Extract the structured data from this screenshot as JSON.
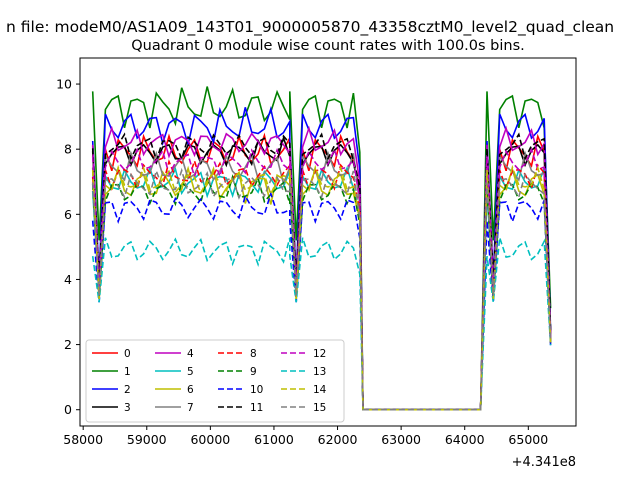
{
  "chart_data": {
    "type": "line",
    "suptitle": "n file: modeM0/AS1A09_143T01_9000005870_43358cztM0_level2_quad_clean",
    "title": "Quadrant 0 module wise count rates with 100.0s bins.",
    "xlabel": "",
    "ylabel": "",
    "x_offset_label": "+4.341e8",
    "xlim": [
      57950,
      65750
    ],
    "ylim": [
      -0.5,
      10.8
    ],
    "x_ticks": [
      58000,
      59000,
      60000,
      61000,
      62000,
      63000,
      64000,
      65000
    ],
    "x_tick_labels": [
      "58000",
      "59000",
      "60000",
      "61000",
      "62000",
      "63000",
      "64000",
      "65000"
    ],
    "y_ticks": [
      0,
      2,
      4,
      6,
      8,
      10
    ],
    "y_tick_labels": [
      "0",
      "2",
      "4",
      "6",
      "8",
      "10"
    ],
    "legend_position": "lower-left",
    "segments": [
      {
        "start": 58150,
        "count": 32
      },
      {
        "start": 61250,
        "count": 12
      },
      {
        "start": 62450,
        "count": 19
      },
      {
        "start": 64350,
        "count": 11
      }
    ],
    "series": [
      {
        "name": "0",
        "color": "#ff0000",
        "dash": false,
        "base": 7.9,
        "amp": 0.4,
        "dip": 3.6
      },
      {
        "name": "1",
        "color": "#008000",
        "dash": false,
        "base": 9.3,
        "amp": 0.45,
        "dip": 5.2
      },
      {
        "name": "2",
        "color": "#0000ff",
        "dash": false,
        "base": 8.7,
        "amp": 0.4,
        "dip": 4.0
      },
      {
        "name": "3",
        "color": "#000000",
        "dash": false,
        "base": 7.9,
        "amp": 0.3,
        "dip": 3.9
      },
      {
        "name": "4",
        "color": "#bf00bf",
        "dash": false,
        "base": 8.2,
        "amp": 0.3,
        "dip": 3.8
      },
      {
        "name": "5",
        "color": "#00bfbf",
        "dash": false,
        "base": 7.0,
        "amp": 0.3,
        "dip": 3.5
      },
      {
        "name": "6",
        "color": "#bfbf00",
        "dash": false,
        "base": 6.9,
        "amp": 0.4,
        "dip": 3.4
      },
      {
        "name": "7",
        "color": "#808080",
        "dash": false,
        "base": 7.4,
        "amp": 0.35,
        "dip": 3.6
      },
      {
        "name": "8",
        "color": "#ff0000",
        "dash": true,
        "base": 7.2,
        "amp": 0.3,
        "dip": 3.5
      },
      {
        "name": "9",
        "color": "#008000",
        "dash": true,
        "base": 6.7,
        "amp": 0.3,
        "dip": 3.4
      },
      {
        "name": "10",
        "color": "#0000ff",
        "dash": true,
        "base": 6.2,
        "amp": 0.3,
        "dip": 3.3
      },
      {
        "name": "11",
        "color": "#000000",
        "dash": true,
        "base": 8.1,
        "amp": 0.3,
        "dip": 4.0
      },
      {
        "name": "12",
        "color": "#bf00bf",
        "dash": true,
        "base": 7.6,
        "amp": 0.3,
        "dip": 3.7
      },
      {
        "name": "13",
        "color": "#00bfbf",
        "dash": true,
        "base": 4.9,
        "amp": 0.3,
        "dip": 3.3
      },
      {
        "name": "14",
        "color": "#bfbf00",
        "dash": true,
        "base": 7.0,
        "amp": 0.3,
        "dip": 3.4
      },
      {
        "name": "15",
        "color": "#808080",
        "dash": true,
        "base": 6.9,
        "amp": 0.3,
        "dip": 3.5
      }
    ]
  }
}
